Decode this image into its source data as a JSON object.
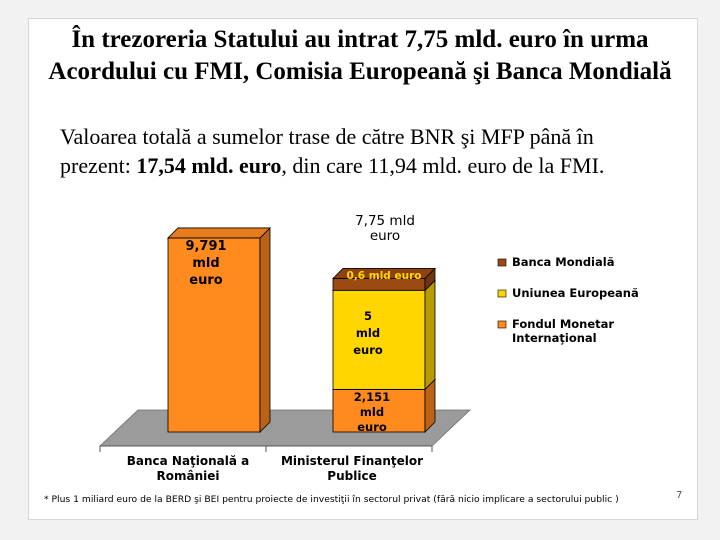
{
  "slide": {
    "title_line1": "În trezoreria Statului au intrat 7,75 mld. euro în urma",
    "title_line2": "Acordului cu FMI, Comisia Europeană şi Banca Mondială",
    "subtitle_line1": "Valoarea totală a sumelor trase de către BNR şi MFP până în",
    "subtitle_pre": "prezent: ",
    "subtitle_bold": "17,54 mld. euro",
    "subtitle_post": ", din care 11,94 mld. euro de la FMI.",
    "footnote": "* Plus 1 miliard euro de la BERD şi BEI pentru proiecte de investiţii în sectorul privat (fără nicio implicare a sectorului public )",
    "page_number": "7"
  },
  "colors": {
    "fmi": "#ff8a1e",
    "ue": "#ffd600",
    "bm": "#9b4a12"
  },
  "chart_data": {
    "type": "bar",
    "stacked": true,
    "three_d": true,
    "ylim": [
      0,
      11
    ],
    "categories": [
      "Banca Naţională a României",
      "Ministerul Finanţelor Publice"
    ],
    "category_lines": [
      [
        "Banca Naţională a",
        "României"
      ],
      [
        "Ministerul Finanţelor",
        "Publice"
      ]
    ],
    "series": [
      {
        "name": "Fondul Monetar Internaţional",
        "legend_lines": [
          "Fondul Monetar",
          "Internaţional"
        ],
        "color": "#ff8a1e",
        "values": [
          9.791,
          2.151
        ]
      },
      {
        "name": "Uniunea Europeană",
        "legend_lines": [
          "Uniunea Europeană"
        ],
        "color": "#ffd600",
        "values": [
          0,
          5
        ]
      },
      {
        "name": "Banca Mondială",
        "legend_lines": [
          "Banca Mondială"
        ],
        "color": "#9b4a12",
        "values": [
          0,
          0.6
        ]
      }
    ],
    "legend_position": "right",
    "data_labels": [
      {
        "lines": [
          "9,791",
          "mld",
          "euro"
        ]
      },
      {
        "lines": [
          "2,151",
          "mld",
          "euro"
        ]
      },
      {
        "lines": [
          "5",
          "mld",
          "euro"
        ]
      },
      {
        "lines": [
          "0,6 mld euro"
        ]
      }
    ],
    "total_label": {
      "lines": [
        "7,75 mld",
        "euro"
      ]
    }
  }
}
